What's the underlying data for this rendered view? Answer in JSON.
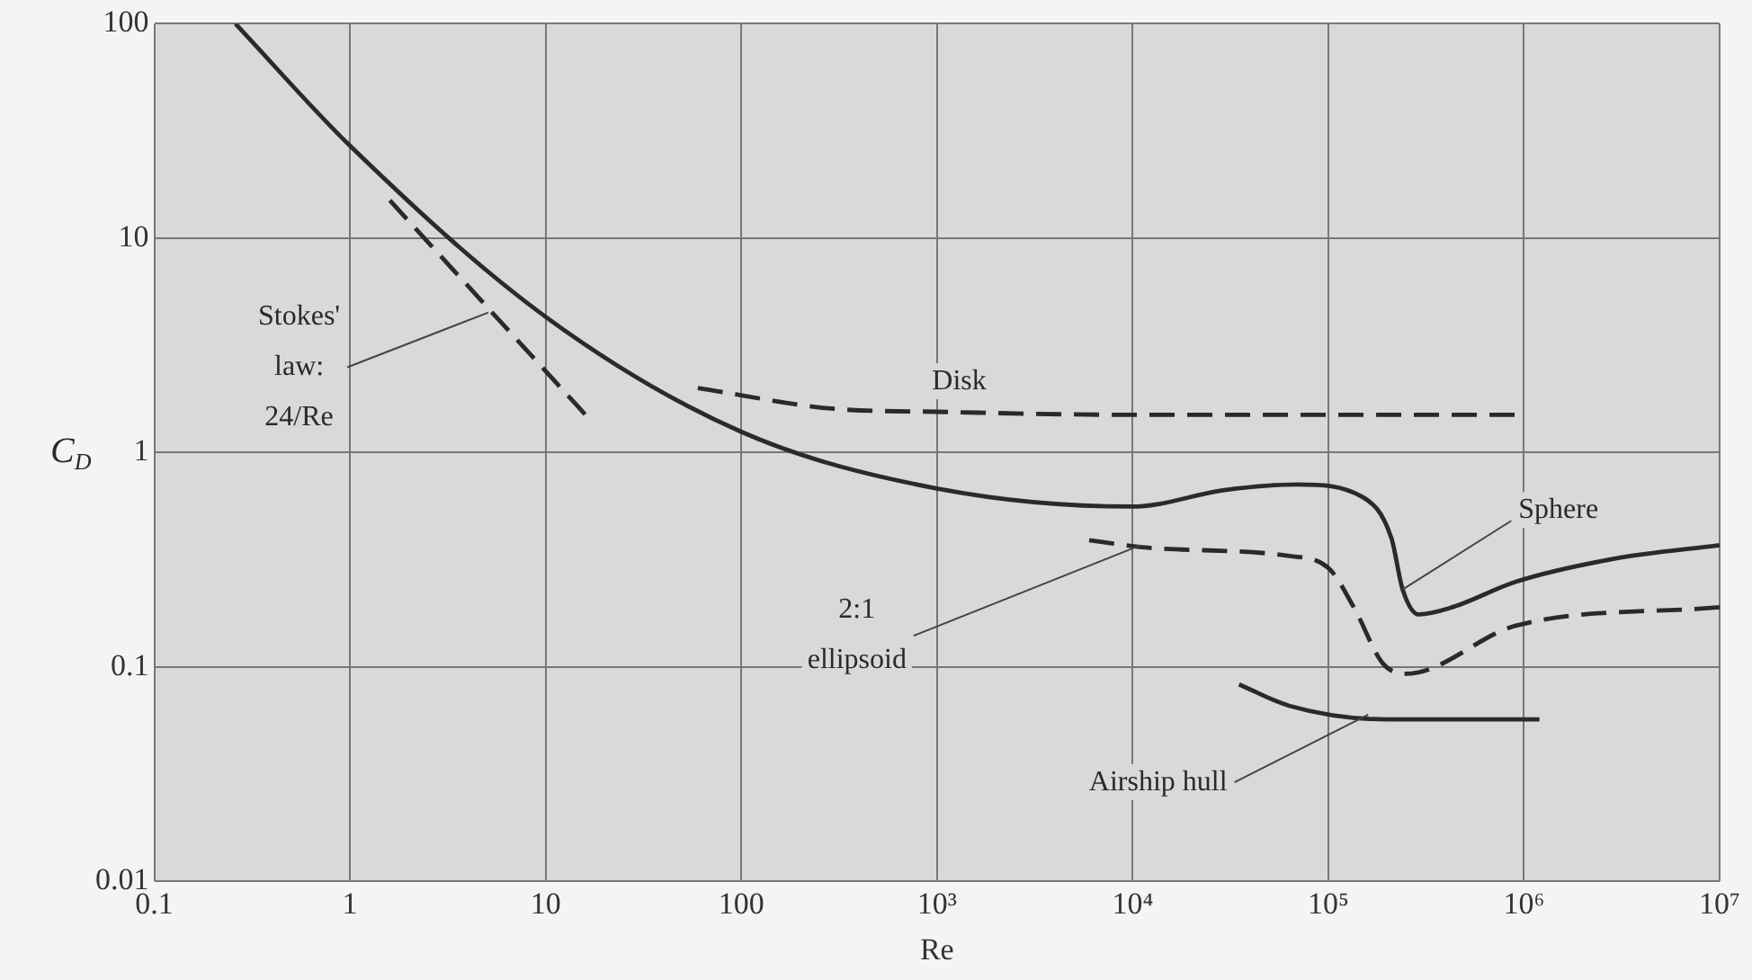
{
  "chart_data": {
    "type": "line",
    "xlabel": "Re",
    "ylabel": "C$_{D}$",
    "log": "xy",
    "grid": true,
    "legend": false,
    "marker": "none",
    "xlim": [
      0.1,
      10000000
    ],
    "ylim": [
      0.01,
      100
    ],
    "xticks": [
      0.1,
      1,
      10,
      100,
      {
        "value": 1000,
        "label": "10³"
      },
      {
        "value": 10000,
        "label": "10⁴"
      },
      {
        "value": 100000,
        "label": "10⁵"
      },
      {
        "value": 1000000,
        "label": "10⁶"
      },
      {
        "value": 10000000,
        "label": "10⁷"
      }
    ],
    "yticks": [
      0.01,
      0.1,
      1,
      10,
      100
    ],
    "series": [
      {
        "name": "Sphere",
        "color": "#2a2a2a",
        "line_style": "solid",
        "x": [
          0.26,
          1,
          10,
          100,
          1000,
          10000,
          30000,
          70000,
          150000,
          210000,
          240000,
          290000,
          430000,
          910000,
          2900000,
          10000000
        ],
        "values": [
          100,
          27,
          4.3,
          1.25,
          0.68,
          0.56,
          0.67,
          0.71,
          0.62,
          0.4,
          0.23,
          0.176,
          0.19,
          0.25,
          0.32,
          0.37
        ]
      },
      {
        "name": "Stokes' law: 24/Re",
        "color": "#2a2a2a",
        "line_style": "dashed",
        "x": [
          1.6,
          5,
          16
        ],
        "values": [
          15,
          4.8,
          1.5
        ]
      },
      {
        "name": "Disk",
        "color": "#2a2a2a",
        "line_style": "dashed",
        "x": [
          60,
          300,
          1000,
          10000,
          1000000
        ],
        "values": [
          2,
          1.6,
          1.55,
          1.5,
          1.5
        ]
      },
      {
        "name": "2:1 ellipsoid",
        "color": "#2a2a2a",
        "line_style": "dashed",
        "x": [
          6000,
          12000,
          62000,
          100000,
          135000,
          190000,
          250000,
          910000,
          10000000
        ],
        "values": [
          0.39,
          0.36,
          0.33,
          0.29,
          0.19,
          0.104,
          0.093,
          0.156,
          0.19
        ]
      },
      {
        "name": "Airship hull",
        "color": "#2a2a2a",
        "line_style": "solid",
        "x": [
          35000,
          63000,
          200000,
          1200000
        ],
        "values": [
          0.083,
          0.066,
          0.057,
          0.057
        ]
      }
    ]
  }
}
